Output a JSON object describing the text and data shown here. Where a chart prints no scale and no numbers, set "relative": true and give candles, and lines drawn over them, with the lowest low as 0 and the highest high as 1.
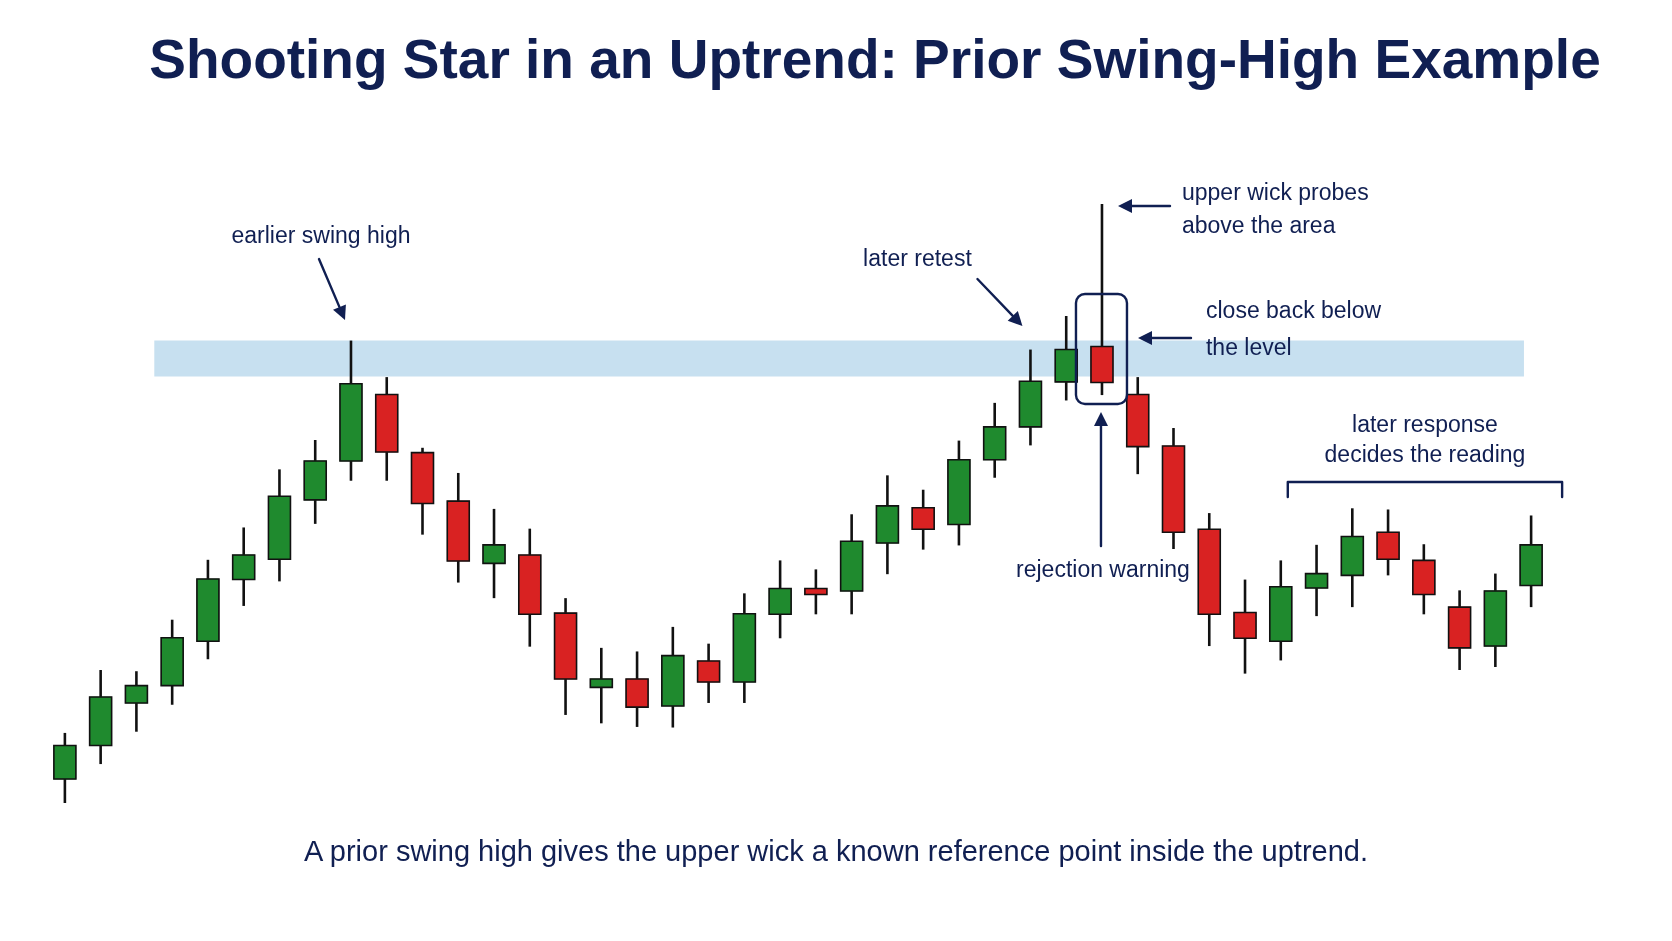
{
  "chart_data": {
    "type": "candlestick",
    "title": "Shooting Star in an Uptrend: Prior Swing-High Example",
    "categories": [
      null,
      null,
      null,
      null,
      null,
      null,
      null,
      null,
      null,
      null,
      null,
      null,
      null,
      null,
      null,
      null,
      null,
      null,
      null,
      null,
      null,
      null,
      null,
      null,
      null,
      null,
      null,
      null,
      null,
      null,
      null,
      null,
      null,
      null,
      null,
      null,
      null,
      null,
      null,
      null,
      null,
      null
    ],
    "ohlc": [
      [
        0.04,
        0.117,
        0,
        0.096
      ],
      [
        0.096,
        0.222,
        0.065,
        0.177
      ],
      [
        0.167,
        0.22,
        0.119,
        0.196
      ],
      [
        0.196,
        0.306,
        0.164,
        0.276
      ],
      [
        0.27,
        0.406,
        0.24,
        0.374
      ],
      [
        0.373,
        0.46,
        0.329,
        0.414
      ],
      [
        0.407,
        0.557,
        0.37,
        0.512
      ],
      [
        0.506,
        0.606,
        0.466,
        0.571
      ],
      [
        0.571,
        0.772,
        0.538,
        0.7
      ],
      [
        0.682,
        0.711,
        0.538,
        0.586
      ],
      [
        0.585,
        0.593,
        0.448,
        0.5
      ],
      [
        0.504,
        0.551,
        0.368,
        0.404
      ],
      [
        0.4,
        0.491,
        0.342,
        0.431
      ],
      [
        0.414,
        0.458,
        0.261,
        0.315
      ],
      [
        0.317,
        0.342,
        0.147,
        0.207
      ],
      [
        0.193,
        0.259,
        0.133,
        0.207
      ],
      [
        0.207,
        0.253,
        0.127,
        0.16
      ],
      [
        0.162,
        0.294,
        0.126,
        0.246
      ],
      [
        0.237,
        0.266,
        0.167,
        0.202
      ],
      [
        0.202,
        0.35,
        0.167,
        0.316
      ],
      [
        0.315,
        0.405,
        0.275,
        0.358
      ],
      [
        0.358,
        0.39,
        0.315,
        0.348
      ],
      [
        0.354,
        0.482,
        0.315,
        0.437
      ],
      [
        0.434,
        0.547,
        0.382,
        0.496
      ],
      [
        0.493,
        0.523,
        0.423,
        0.457
      ],
      [
        0.465,
        0.605,
        0.43,
        0.573
      ],
      [
        0.573,
        0.668,
        0.543,
        0.628
      ],
      [
        0.628,
        0.757,
        0.597,
        0.704
      ],
      [
        0.703,
        0.813,
        0.672,
        0.757
      ],
      [
        0.762,
        1,
        0.681,
        0.702
      ],
      [
        0.682,
        0.711,
        0.549,
        0.595
      ],
      [
        0.596,
        0.626,
        0.424,
        0.452
      ],
      [
        0.457,
        0.484,
        0.262,
        0.315
      ],
      [
        0.318,
        0.373,
        0.216,
        0.275
      ],
      [
        0.27,
        0.405,
        0.238,
        0.361
      ],
      [
        0.359,
        0.431,
        0.312,
        0.383
      ],
      [
        0.38,
        0.492,
        0.327,
        0.445
      ],
      [
        0.452,
        0.49,
        0.38,
        0.407
      ],
      [
        0.405,
        0.432,
        0.315,
        0.348
      ],
      [
        0.327,
        0.355,
        0.222,
        0.259
      ],
      [
        0.262,
        0.383,
        0.227,
        0.354
      ],
      [
        0.363,
        0.48,
        0.327,
        0.431
      ]
    ],
    "colors": [
      "#1f8a2e",
      "#1f8a2e",
      "#1f8a2e",
      "#1f8a2e",
      "#1f8a2e",
      "#1f8a2e",
      "#1f8a2e",
      "#1f8a2e",
      "#1f8a2e",
      "#d92222",
      "#d92222",
      "#d92222",
      "#1f8a2e",
      "#d92222",
      "#d92222",
      "#1f8a2e",
      "#d92222",
      "#1f8a2e",
      "#d92222",
      "#1f8a2e",
      "#1f8a2e",
      "#d92222",
      "#1f8a2e",
      "#1f8a2e",
      "#d92222",
      "#1f8a2e",
      "#1f8a2e",
      "#1f8a2e",
      "#1f8a2e",
      "#d92222",
      "#d92222",
      "#d92222",
      "#d92222",
      "#d92222",
      "#1f8a2e",
      "#1f8a2e",
      "#1f8a2e",
      "#d92222",
      "#d92222",
      "#d92222",
      "#1f8a2e",
      "#1f8a2e"
    ],
    "relative": true,
    "tick_labels": false,
    "bands": [
      {
        "axis": "y",
        "from": 0.712,
        "to": 0.772,
        "color": "#c7e0f0"
      }
    ],
    "annotations": [
      "earlier swing high",
      "later retest",
      "upper wick probes\nabove the area",
      "close back below\nthe level",
      "rejection warning",
      "later response\ndecides the reading",
      "A prior swing high gives the upper wick a known reference point inside the uptrend."
    ]
  }
}
